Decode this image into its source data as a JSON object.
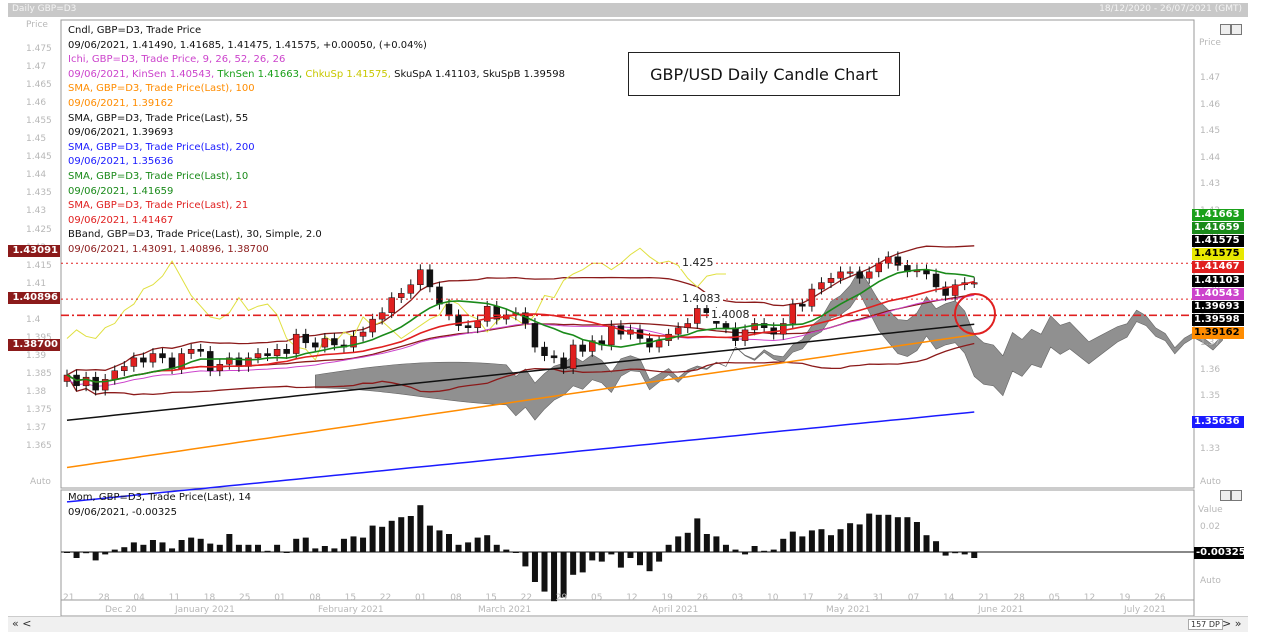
{
  "window": {
    "title": "Daily GBP=D3",
    "date_range": "18/12/2020 - 26/07/2021 (GMT)",
    "price_label": "Price",
    "right_price_label": "Price",
    "value_label": "Value",
    "auto_label": "Auto",
    "dp_label": "157 DP",
    "chart_icon": "chart-corner-icon"
  },
  "legend": [
    {
      "text": "Cndl, GBP=D3, Trade Price",
      "color": "#111111"
    },
    {
      "text": "09/06/2021, 1.41490, 1.41685, 1.41475, 1.41575, +0.00050, (+0.04%)",
      "color": "#111111"
    },
    {
      "text": "Ichi, GBP=D3, Trade Price,  9, 26, 52, 26, 26",
      "color": "#cc44cc"
    },
    {
      "text": "SMA, GBP=D3, Trade Price(Last),  100",
      "color": "#ff8c00"
    },
    {
      "text": "09/06/2021, 1.39162",
      "color": "#ff8c00"
    },
    {
      "text": "SMA, GBP=D3, Trade Price(Last),  55",
      "color": "#111111"
    },
    {
      "text": "09/06/2021, 1.39693",
      "color": "#111111"
    },
    {
      "text": "SMA, GBP=D3, Trade Price(Last),  200",
      "color": "#1a1aff"
    },
    {
      "text": "09/06/2021, 1.35636",
      "color": "#1a1aff"
    },
    {
      "text": "SMA, GBP=D3, Trade Price(Last),  10",
      "color": "#1a8a1a"
    },
    {
      "text": "09/06/2021, 1.41659",
      "color": "#1a8a1a"
    },
    {
      "text": "SMA, GBP=D3, Trade Price(Last),  21",
      "color": "#e02020"
    },
    {
      "text": "09/06/2021, 1.41467",
      "color": "#e02020"
    },
    {
      "text": "BBand, GBP=D3, Trade Price(Last),  30, Simple, 2.0",
      "color": "#111111"
    },
    {
      "text": "09/06/2021, 1.43091, 1.40896, 1.38700",
      "color": "#8b1a1a"
    }
  ],
  "ichi_values_line": [
    {
      "text": "09/06/2021, ",
      "color": "#cc44cc"
    },
    {
      "text": "KinSen 1.40543, ",
      "color": "#cc44cc"
    },
    {
      "text": "TknSen 1.41663, ",
      "color": "#1aa01a"
    },
    {
      "text": "ChkuSp 1.41575, ",
      "color": "#c8c800"
    },
    {
      "text": "SkuSpA 1.41103, ",
      "color": "#111111"
    },
    {
      "text": "SkuSpB 1.39598",
      "color": "#111111"
    }
  ],
  "chart_title": "GBP/USD Daily Candle Chart",
  "left_axis_labels": [
    "1.475",
    "1.47",
    "1.465",
    "1.46",
    "1.455",
    "1.45",
    "1.445",
    "1.44",
    "1.435",
    "1.43",
    "1.425",
    "1.42",
    "1.415",
    "1.41",
    "1.405",
    "1.4",
    "1.395",
    "1.39",
    "1.385",
    "1.38",
    "1.375",
    "1.37",
    "1.365"
  ],
  "right_axis_labels": [
    "1.47",
    "1.46",
    "1.45",
    "1.44",
    "1.43",
    "1.42",
    "1.41",
    "1.4",
    "1.39",
    "1.38",
    "1.37",
    "1.36",
    "1.35",
    "1.34",
    "1.33"
  ],
  "momentum_axis_labels": [
    "0.02",
    "0"
  ],
  "level_lines": [
    {
      "label": "1.425",
      "value": 1.425
    },
    {
      "label": "1.4083",
      "value": 1.4083
    },
    {
      "label": "1.4008",
      "value": 1.4008
    }
  ],
  "left_badges": [
    {
      "text": "1.43091",
      "value": 1.43091,
      "bg": "#8b1a1a"
    },
    {
      "text": "1.40896",
      "value": 1.40896,
      "bg": "#8b1a1a"
    },
    {
      "text": "1.38700",
      "value": 1.387,
      "bg": "#8b1a1a"
    }
  ],
  "right_badges": [
    {
      "text": "1.41663",
      "bg": "#1aa01a",
      "fg": "#ffffff"
    },
    {
      "text": "1.41659",
      "bg": "#1a8a1a",
      "fg": "#ffffff"
    },
    {
      "text": "1.41575",
      "bg": "#000000",
      "fg": "#ffffff"
    },
    {
      "text": "1.41575",
      "bg": "#e8e800",
      "fg": "#000000"
    },
    {
      "text": "1.41467",
      "bg": "#e02020",
      "fg": "#ffffff"
    },
    {
      "text": "1.41103",
      "bg": "#000000",
      "fg": "#ffffff"
    },
    {
      "text": "1.40543",
      "bg": "#cc44cc",
      "fg": "#ffffff"
    },
    {
      "text": "1.39693",
      "bg": "#000000",
      "fg": "#ffffff"
    },
    {
      "text": "1.39598",
      "bg": "#000000",
      "fg": "#ffffff"
    },
    {
      "text": "1.39162",
      "bg": "#ff8c00",
      "fg": "#000000"
    },
    {
      "text": "1.35636",
      "bg": "#1a1aff",
      "fg": "#ffffff",
      "value": 1.35636
    }
  ],
  "momentum": {
    "legend_line1": "Mom, GBP=D3, Trade Price(Last),  14",
    "legend_line2": "09/06/2021, -0.00325",
    "badge": "-0.00325"
  },
  "x_day_labels": [
    "21",
    "28",
    "04",
    "11",
    "18",
    "25",
    "01",
    "08",
    "15",
    "22",
    "01",
    "08",
    "15",
    "22",
    "29",
    "05",
    "12",
    "19",
    "26",
    "03",
    "10",
    "17",
    "24",
    "31",
    "07",
    "14",
    "21",
    "28",
    "05",
    "12",
    "19",
    "26"
  ],
  "x_month_labels": [
    "Dec 20",
    "January 2021",
    "February 2021",
    "March 2021",
    "April 2021",
    "May 2021",
    "June 2021",
    "July 2021"
  ],
  "nav_left": "«  <",
  "nav_right": ">  »",
  "chart_data": {
    "type": "line",
    "title": "GBP/USD Daily Candle Chart",
    "x_start": "2020-12-18",
    "x_end": "2021-07-26",
    "last_date": "2021-06-09",
    "ylim": [
      1.33,
      1.48
    ],
    "last_candle": {
      "date": "2021-06-09",
      "open": 1.4149,
      "high": 1.41685,
      "low": 1.41475,
      "close": 1.41575
    },
    "candles_close": [
      1.373,
      1.368,
      1.372,
      1.366,
      1.371,
      1.375,
      1.377,
      1.381,
      1.379,
      1.383,
      1.381,
      1.376,
      1.383,
      1.385,
      1.384,
      1.375,
      1.378,
      1.381,
      1.377,
      1.381,
      1.383,
      1.382,
      1.385,
      1.383,
      1.392,
      1.388,
      1.386,
      1.39,
      1.387,
      1.386,
      1.391,
      1.393,
      1.399,
      1.402,
      1.409,
      1.411,
      1.415,
      1.422,
      1.414,
      1.406,
      1.401,
      1.396,
      1.395,
      1.398,
      1.405,
      1.399,
      1.401,
      1.402,
      1.397,
      1.386,
      1.382,
      1.381,
      1.376,
      1.387,
      1.384,
      1.389,
      1.387,
      1.396,
      1.392,
      1.394,
      1.39,
      1.386,
      1.389,
      1.392,
      1.395,
      1.397,
      1.404,
      1.402,
      1.397,
      1.395,
      1.389,
      1.394,
      1.397,
      1.395,
      1.392,
      1.397,
      1.406,
      1.405,
      1.413,
      1.416,
      1.418,
      1.421,
      1.421,
      1.418,
      1.421,
      1.425,
      1.428,
      1.424,
      1.421,
      1.422,
      1.42,
      1.414,
      1.41,
      1.415,
      1.416,
      1.416
    ],
    "series": [
      {
        "name": "SMA 10",
        "color": "#1a8a1a",
        "last": 1.41659
      },
      {
        "name": "SMA 21",
        "color": "#e02020",
        "last": 1.41467
      },
      {
        "name": "SMA 55",
        "color": "#111111",
        "last": 1.39693
      },
      {
        "name": "SMA 100",
        "color": "#ff8c00",
        "last": 1.39162
      },
      {
        "name": "SMA 200",
        "color": "#1a1aff",
        "last": 1.35636
      },
      {
        "name": "BBand upper",
        "color": "#8b1a1a",
        "last": 1.43091
      },
      {
        "name": "BBand mid",
        "color": "#8b1a1a",
        "last": 1.40896
      },
      {
        "name": "BBand lower",
        "color": "#8b1a1a",
        "last": 1.387
      },
      {
        "name": "KinSen",
        "color": "#cc44cc",
        "last": 1.40543
      },
      {
        "name": "TknSen",
        "color": "#1aa01a",
        "last": 1.41663
      },
      {
        "name": "ChkuSp",
        "color": "#c8c800",
        "last": 1.41575
      },
      {
        "name": "SkuSpA",
        "color": "#111111",
        "last": 1.41103
      },
      {
        "name": "SkuSpB",
        "color": "#111111",
        "last": 1.39598
      }
    ],
    "horizontal_levels": [
      1.425,
      1.4083,
      1.4008
    ],
    "momentum_last": -0.00325
  }
}
